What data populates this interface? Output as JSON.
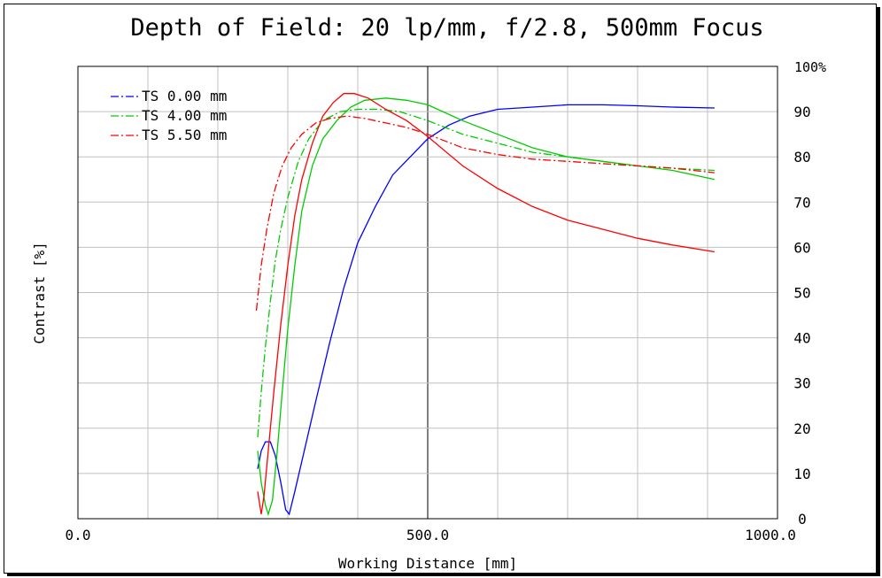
{
  "chart_data": {
    "type": "line",
    "title": "Depth of Field: 20 lp/mm, f/2.8, 500mm Focus",
    "xlabel": "Working Distance [mm]",
    "ylabel": "Contrast [%]",
    "xlim": [
      0,
      1000
    ],
    "ylim": [
      0,
      100
    ],
    "x_tick_labels": [
      {
        "value": 0,
        "label": "0.0"
      },
      {
        "value": 500,
        "label": "500.0"
      },
      {
        "value": 1000,
        "label": "1000.0"
      }
    ],
    "x_grid": [
      100,
      200,
      300,
      400,
      500,
      600,
      700,
      800,
      900
    ],
    "y_ticks": [
      0,
      10,
      20,
      30,
      40,
      50,
      60,
      70,
      80,
      90,
      100
    ],
    "y_top_label": "100%",
    "grid": true,
    "focus_line_x": 500,
    "legend_position": "top-left",
    "series": [
      {
        "name": "TS 0.00 mm",
        "color": "#0000ff",
        "dash": "solid",
        "points": [
          [
            257,
            11
          ],
          [
            262,
            15
          ],
          [
            268,
            17
          ],
          [
            275,
            17
          ],
          [
            282,
            14
          ],
          [
            290,
            8
          ],
          [
            297,
            2
          ],
          [
            302,
            1
          ],
          [
            310,
            6
          ],
          [
            325,
            16
          ],
          [
            340,
            26
          ],
          [
            360,
            39
          ],
          [
            380,
            51
          ],
          [
            400,
            61
          ],
          [
            425,
            69
          ],
          [
            450,
            76
          ],
          [
            475,
            80
          ],
          [
            500,
            84
          ],
          [
            530,
            87
          ],
          [
            560,
            89
          ],
          [
            600,
            90.5
          ],
          [
            650,
            91
          ],
          [
            700,
            91.5
          ],
          [
            750,
            91.5
          ],
          [
            800,
            91.3
          ],
          [
            850,
            91
          ],
          [
            910,
            90.8
          ]
        ]
      },
      {
        "name": "TS 4.00 mm",
        "color": "#00cc00",
        "dash": "solid",
        "points": [
          [
            257,
            15
          ],
          [
            262,
            8
          ],
          [
            268,
            3
          ],
          [
            272,
            1
          ],
          [
            278,
            4
          ],
          [
            285,
            15
          ],
          [
            292,
            28
          ],
          [
            300,
            42
          ],
          [
            310,
            56
          ],
          [
            320,
            68
          ],
          [
            335,
            78
          ],
          [
            350,
            84
          ],
          [
            370,
            88
          ],
          [
            390,
            91
          ],
          [
            410,
            92.5
          ],
          [
            440,
            93
          ],
          [
            470,
            92.5
          ],
          [
            500,
            91.5
          ],
          [
            550,
            88
          ],
          [
            600,
            85
          ],
          [
            650,
            82
          ],
          [
            700,
            80
          ],
          [
            750,
            79
          ],
          [
            800,
            78
          ],
          [
            850,
            77
          ],
          [
            910,
            75
          ]
        ]
      },
      {
        "name": "TS 4.00 mm",
        "color": "#00cc00",
        "dash": "dashdot",
        "points": [
          [
            257,
            18
          ],
          [
            262,
            28
          ],
          [
            268,
            38
          ],
          [
            275,
            48
          ],
          [
            282,
            57
          ],
          [
            290,
            64
          ],
          [
            300,
            71
          ],
          [
            315,
            79
          ],
          [
            330,
            84
          ],
          [
            350,
            88
          ],
          [
            375,
            90
          ],
          [
            400,
            90.5
          ],
          [
            430,
            90.5
          ],
          [
            460,
            90
          ],
          [
            500,
            88
          ],
          [
            550,
            85
          ],
          [
            600,
            83
          ],
          [
            650,
            81
          ],
          [
            700,
            80
          ],
          [
            750,
            79
          ],
          [
            800,
            78
          ],
          [
            850,
            77.5
          ],
          [
            910,
            77
          ]
        ]
      },
      {
        "name": "TS 5.50 mm",
        "color": "#ff0000",
        "dash": "solid",
        "points": [
          [
            257,
            6
          ],
          [
            262,
            1
          ],
          [
            266,
            5
          ],
          [
            272,
            15
          ],
          [
            280,
            28
          ],
          [
            290,
            43
          ],
          [
            300,
            56
          ],
          [
            310,
            67
          ],
          [
            320,
            75
          ],
          [
            335,
            83
          ],
          [
            350,
            89
          ],
          [
            365,
            92
          ],
          [
            380,
            94
          ],
          [
            395,
            94
          ],
          [
            415,
            93
          ],
          [
            440,
            90.5
          ],
          [
            470,
            88
          ],
          [
            500,
            84.5
          ],
          [
            550,
            78
          ],
          [
            600,
            73
          ],
          [
            650,
            69
          ],
          [
            700,
            66
          ],
          [
            750,
            64
          ],
          [
            800,
            62
          ],
          [
            850,
            60.5
          ],
          [
            910,
            59
          ]
        ]
      },
      {
        "name": "TS 5.50 mm",
        "color": "#ff0000",
        "dash": "dashdot",
        "points": [
          [
            255,
            46
          ],
          [
            262,
            56
          ],
          [
            270,
            64
          ],
          [
            280,
            72
          ],
          [
            292,
            78
          ],
          [
            305,
            82
          ],
          [
            320,
            85
          ],
          [
            340,
            87.5
          ],
          [
            360,
            88.5
          ],
          [
            385,
            89
          ],
          [
            410,
            88.5
          ],
          [
            440,
            87.5
          ],
          [
            470,
            86.5
          ],
          [
            500,
            85
          ],
          [
            550,
            82
          ],
          [
            600,
            80.5
          ],
          [
            650,
            79.5
          ],
          [
            700,
            79
          ],
          [
            750,
            78.5
          ],
          [
            800,
            78
          ],
          [
            850,
            77.5
          ],
          [
            910,
            76.5
          ]
        ]
      }
    ],
    "legend": [
      {
        "label": "TS 0.00 mm",
        "color": "#0000ff"
      },
      {
        "label": "TS 4.00 mm",
        "color": "#00cc00"
      },
      {
        "label": "TS 5.50 mm",
        "color": "#ff0000"
      }
    ]
  }
}
